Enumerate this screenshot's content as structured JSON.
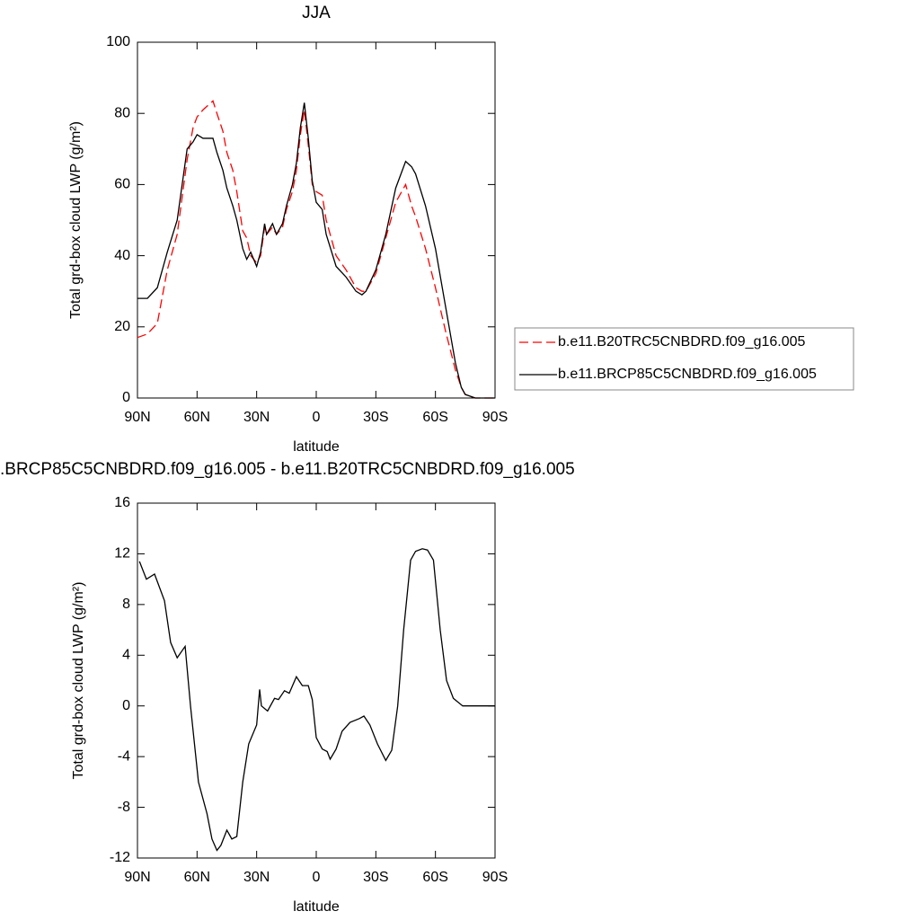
{
  "chart_data": [
    {
      "type": "line",
      "title": "JJA",
      "xlabel": "latitude",
      "ylabel": "Total grd-box cloud LWP (g/m²)",
      "xlim": [
        90,
        -90
      ],
      "ylim": [
        0,
        100
      ],
      "xticks": [
        {
          "value": 90,
          "label": "90N"
        },
        {
          "value": 60,
          "label": "60N"
        },
        {
          "value": 30,
          "label": "30N"
        },
        0,
        {
          "value": -30,
          "label": "30S"
        },
        {
          "value": -60,
          "label": "60S"
        },
        {
          "value": -90,
          "label": "90S"
        }
      ],
      "yticks": [
        0,
        20,
        40,
        60,
        80,
        100
      ],
      "legend": "right",
      "x": [
        90,
        85,
        80,
        75,
        70,
        65,
        62,
        60,
        57,
        55,
        52,
        50,
        47,
        45,
        42,
        40,
        37,
        35,
        33,
        30,
        28,
        26,
        25,
        22,
        20,
        17,
        15,
        12,
        10,
        8,
        6,
        4,
        2,
        0,
        -3,
        -5,
        -10,
        -15,
        -20,
        -23,
        -25,
        -30,
        -35,
        -40,
        -45,
        -48,
        -50,
        -55,
        -60,
        -65,
        -70,
        -73,
        -75,
        -80,
        -85,
        -90
      ],
      "series": [
        {
          "name": "b.e11.B20TRC5CNBDRD.f09_g16.005",
          "color": "#ff0000",
          "line_style": "dashed",
          "values": [
            17,
            18,
            21,
            36,
            46,
            67,
            76,
            79,
            81,
            82,
            83.5,
            80,
            75,
            69,
            64,
            58,
            47,
            45,
            40,
            38,
            40,
            48,
            46,
            48,
            46,
            48,
            53,
            58,
            64,
            74,
            81,
            71,
            60,
            58,
            57,
            50,
            40,
            36,
            31,
            30,
            30,
            35,
            45,
            55,
            60,
            54,
            51,
            42,
            31,
            19,
            8,
            3,
            1,
            0,
            0,
            0
          ]
        },
        {
          "name": "b.e11.BRCP85C5CNBDRD.f09_g16.005",
          "color": "#000000",
          "line_style": "solid",
          "values": [
            28,
            28,
            31,
            41,
            50,
            70,
            72,
            74,
            73,
            73,
            73,
            69,
            64,
            59,
            54,
            50,
            42,
            39,
            41,
            37,
            41,
            49,
            46,
            49,
            46,
            49,
            54,
            60,
            66,
            76,
            83,
            73,
            61,
            55,
            53,
            46,
            37,
            34,
            30,
            29,
            30,
            36,
            46,
            59,
            66.5,
            65,
            63,
            54,
            42,
            26,
            10,
            3,
            1,
            0,
            0,
            0
          ]
        }
      ]
    },
    {
      "type": "line",
      "title": ".BRCP85C5CNBDRD.f09_g16.005 - b.e11.B20TRC5CNBDRD.f09_g16.005",
      "xlabel": "latitude",
      "ylabel": "Total grd-box cloud LWP (g/m²)",
      "xlim": [
        90,
        -90
      ],
      "ylim": [
        -12,
        16
      ],
      "xticks": [
        {
          "value": 90,
          "label": "90N"
        },
        {
          "value": 60,
          "label": "60N"
        },
        {
          "value": 30,
          "label": "30N"
        },
        0,
        {
          "value": -30,
          "label": "30S"
        },
        {
          "value": -60,
          "label": "60S"
        },
        {
          "value": -90,
          "label": "90S"
        }
      ],
      "yticks": [
        -12,
        -8,
        -4,
        0,
        4,
        8,
        12,
        16
      ],
      "x": [
        89,
        85.5,
        81.4,
        76.4,
        73.3,
        70,
        66,
        63.3,
        59.3,
        55,
        52.5,
        50,
        48,
        45,
        42.5,
        40,
        37,
        34,
        30,
        28.5,
        27.6,
        24.5,
        21,
        19,
        16,
        13.6,
        10,
        7,
        4,
        2,
        0,
        -3,
        -5.5,
        -7,
        -10,
        -13,
        -17,
        -21.7,
        -24,
        -27,
        -30.8,
        -35,
        -38,
        -41,
        -44,
        -47.5,
        -50,
        -53.4,
        -56,
        -59,
        -62.4,
        -65.6,
        -69,
        -73.7,
        -90
      ],
      "series": [
        {
          "name": null,
          "color": "#000000",
          "line_style": "solid",
          "values": [
            11.4,
            10,
            10.4,
            8.3,
            5,
            3.8,
            4.7,
            0,
            -6,
            -8.5,
            -10.5,
            -11.4,
            -11,
            -9.8,
            -10.5,
            -10.3,
            -6,
            -3,
            -1.5,
            1.3,
            0,
            -0.4,
            0.6,
            0.5,
            1.2,
            1,
            2.3,
            1.6,
            1.6,
            0.5,
            -2.5,
            -3.4,
            -3.6,
            -4.2,
            -3.4,
            -2,
            -1.3,
            -1,
            -0.8,
            -1.5,
            -3,
            -4.3,
            -3.5,
            0,
            6,
            11.5,
            12.2,
            12.4,
            12.3,
            11.5,
            6,
            2,
            0.6,
            0,
            0
          ]
        }
      ]
    }
  ]
}
